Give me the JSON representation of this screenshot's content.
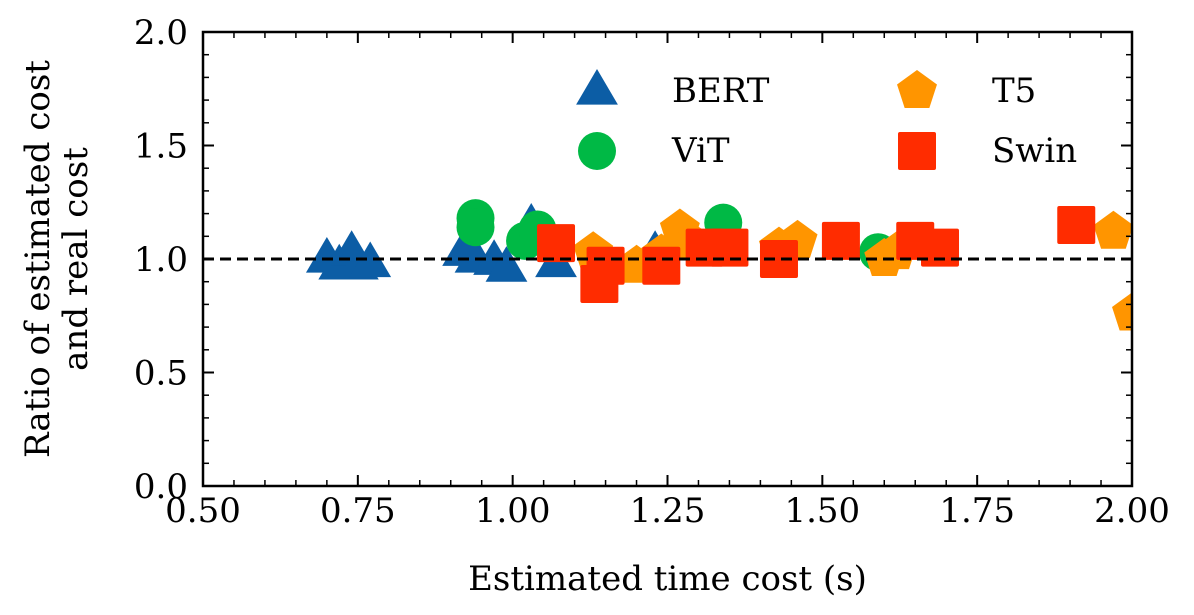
{
  "chart_data": {
    "type": "scatter",
    "xlabel": "Estimated time cost (s)",
    "ylabel_lines": [
      "Ratio of estimated cost",
      "and real cost"
    ],
    "xlim": [
      0.5,
      2.0
    ],
    "ylim": [
      0.0,
      2.0
    ],
    "x_ticks": [
      0.5,
      0.75,
      1.0,
      1.25,
      1.5,
      1.75,
      2.0
    ],
    "x_tick_labels": [
      "0.50",
      "0.75",
      "1.00",
      "1.25",
      "1.50",
      "1.75",
      "2.00"
    ],
    "y_ticks": [
      0.0,
      0.5,
      1.0,
      1.5,
      2.0
    ],
    "y_tick_labels": [
      "0.0",
      "0.5",
      "1.0",
      "1.5",
      "2.0"
    ],
    "reference_line": {
      "y": 1.0,
      "style": "dashed",
      "color": "#000000"
    },
    "grid": false,
    "legend": {
      "placement": "top-right",
      "columns": 2
    },
    "series": [
      {
        "name": "BERT",
        "marker": "triangle",
        "color": "#0C5DA5",
        "points": [
          [
            0.7,
            1.0
          ],
          [
            0.72,
            0.97
          ],
          [
            0.74,
            1.03
          ],
          [
            0.75,
            0.97
          ],
          [
            0.77,
            0.98
          ],
          [
            0.92,
            1.03
          ],
          [
            0.94,
            1.0
          ],
          [
            0.97,
            0.99
          ],
          [
            0.99,
            0.96
          ],
          [
            1.03,
            1.15
          ],
          [
            1.07,
            0.98
          ],
          [
            1.23,
            1.03
          ]
        ]
      },
      {
        "name": "ViT",
        "marker": "circle",
        "color": "#00B945",
        "points": [
          [
            0.94,
            1.18
          ],
          [
            0.94,
            1.14
          ],
          [
            1.02,
            1.08
          ],
          [
            1.04,
            1.13
          ],
          [
            1.34,
            1.16
          ],
          [
            1.59,
            1.03
          ]
        ]
      },
      {
        "name": "T5",
        "marker": "pentagon",
        "color": "#FF9500",
        "points": [
          [
            1.13,
            1.03
          ],
          [
            1.2,
            0.97
          ],
          [
            1.24,
            1.02
          ],
          [
            1.27,
            1.13
          ],
          [
            1.29,
            1.07
          ],
          [
            1.43,
            1.05
          ],
          [
            1.46,
            1.08
          ],
          [
            1.6,
            1.0
          ],
          [
            1.62,
            1.03
          ],
          [
            1.97,
            1.12
          ],
          [
            2.0,
            0.76
          ]
        ]
      },
      {
        "name": "Swin",
        "marker": "square",
        "color": "#FF2C00",
        "points": [
          [
            1.07,
            1.07
          ],
          [
            1.14,
            0.89
          ],
          [
            1.15,
            0.97
          ],
          [
            1.24,
            0.97
          ],
          [
            1.31,
            1.05
          ],
          [
            1.35,
            1.05
          ],
          [
            1.43,
            1.0
          ],
          [
            1.53,
            1.08
          ],
          [
            1.65,
            1.08
          ],
          [
            1.69,
            1.05
          ],
          [
            1.91,
            1.15
          ]
        ]
      }
    ]
  }
}
